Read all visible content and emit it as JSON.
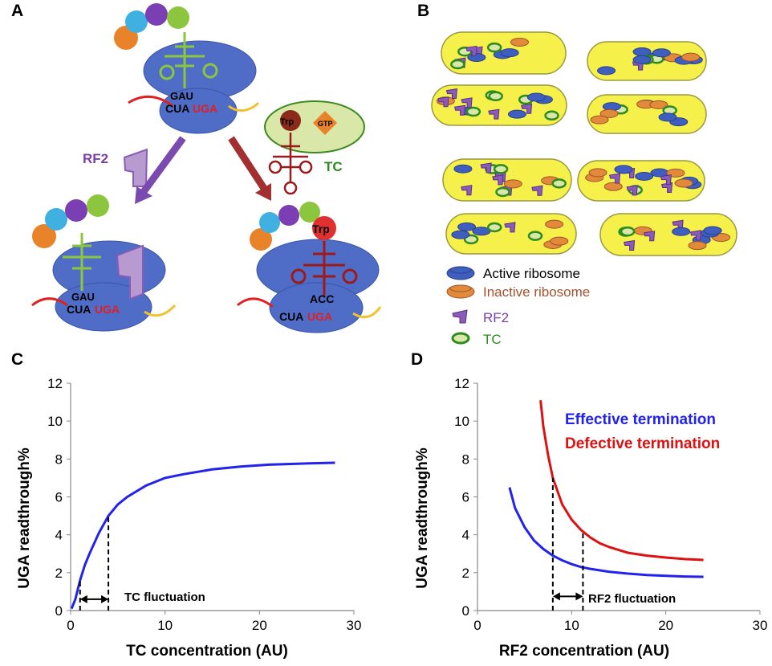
{
  "panels": {
    "a": {
      "label": "A",
      "codons": {
        "anticodon_top": "GAU",
        "codon": "CUA",
        "stop": "UGA",
        "anticodon_trp": "ACC"
      },
      "rf2_label": "RF2",
      "tc_label": "TC",
      "trp_label": "Trp",
      "gtp_label": "GTP",
      "colors": {
        "ribosome": "#4F6DC6",
        "rf2": "#8A5BB8",
        "tc_fill": "#D9E7A8",
        "trna_green": "#8CC63F",
        "trna_red": "#9B1B1B",
        "stop_red": "#E02020"
      }
    },
    "b": {
      "label": "B",
      "legend": [
        {
          "label": "Active ribosome",
          "color": "#000000",
          "icon": "active-ribosome-icon"
        },
        {
          "label": "Inactive ribosome",
          "color": "#A0522D",
          "icon": "inactive-ribosome-icon"
        },
        {
          "label": "RF2",
          "color": "#7A3FA8",
          "icon": "rf2-icon"
        },
        {
          "label": "TC",
          "color": "#2E8B1E",
          "icon": "tc-icon"
        }
      ]
    },
    "c": {
      "label": "C",
      "annotation": "TC fluctuation"
    },
    "d": {
      "label": "D",
      "annotation": "RF2 fluctuation"
    }
  },
  "chart_data": [
    {
      "type": "line",
      "xlabel": "TC concentration (AU)",
      "ylabel": "UGA readthrough%",
      "xlim": [
        0,
        30
      ],
      "ylim": [
        0,
        12
      ],
      "xticks": [
        "0",
        "10",
        "20",
        "30"
      ],
      "yticks": [
        "0",
        "2",
        "4",
        "6",
        "8",
        "10",
        "12"
      ],
      "series": [
        {
          "color": "#2222EE",
          "x": [
            0.1,
            0.5,
            1,
            1.5,
            2,
            3,
            4,
            5,
            6,
            8,
            10,
            12,
            15,
            18,
            21,
            24,
            28
          ],
          "y": [
            0.1,
            0.6,
            1.6,
            2.4,
            3.0,
            4.1,
            5.0,
            5.6,
            6.0,
            6.6,
            7.0,
            7.2,
            7.45,
            7.6,
            7.7,
            7.75,
            7.8
          ]
        }
      ],
      "markers": [
        1.0,
        4.0
      ],
      "grid": false
    },
    {
      "type": "line",
      "xlabel": "RF2 concentration (AU)",
      "ylabel": "UGA readthrough%",
      "xlim": [
        0,
        30
      ],
      "ylim": [
        0,
        12
      ],
      "xticks": [
        "0",
        "10",
        "20",
        "30"
      ],
      "yticks": [
        "0",
        "2",
        "4",
        "6",
        "8",
        "10",
        "12"
      ],
      "legend_position": "top-right",
      "series": [
        {
          "name": "Effective termination",
          "color": "#2222EE",
          "x": [
            3.4,
            4,
            5,
            6,
            7,
            8,
            9,
            10,
            11,
            12,
            14,
            16,
            18,
            20,
            22,
            24
          ],
          "y": [
            6.5,
            5.4,
            4.4,
            3.7,
            3.25,
            2.9,
            2.65,
            2.45,
            2.3,
            2.2,
            2.05,
            1.95,
            1.88,
            1.83,
            1.8,
            1.78
          ]
        },
        {
          "name": "Defective termination",
          "color": "#DD1111",
          "x": [
            6.7,
            7,
            7.5,
            8,
            9,
            10,
            11,
            12,
            13,
            14,
            16,
            18,
            20,
            22,
            24
          ],
          "y": [
            11.1,
            9.7,
            8.2,
            7.0,
            5.6,
            4.8,
            4.25,
            3.85,
            3.55,
            3.35,
            3.05,
            2.9,
            2.8,
            2.72,
            2.67
          ]
        }
      ],
      "markers": [
        8.0,
        11.2
      ],
      "grid": false
    }
  ]
}
